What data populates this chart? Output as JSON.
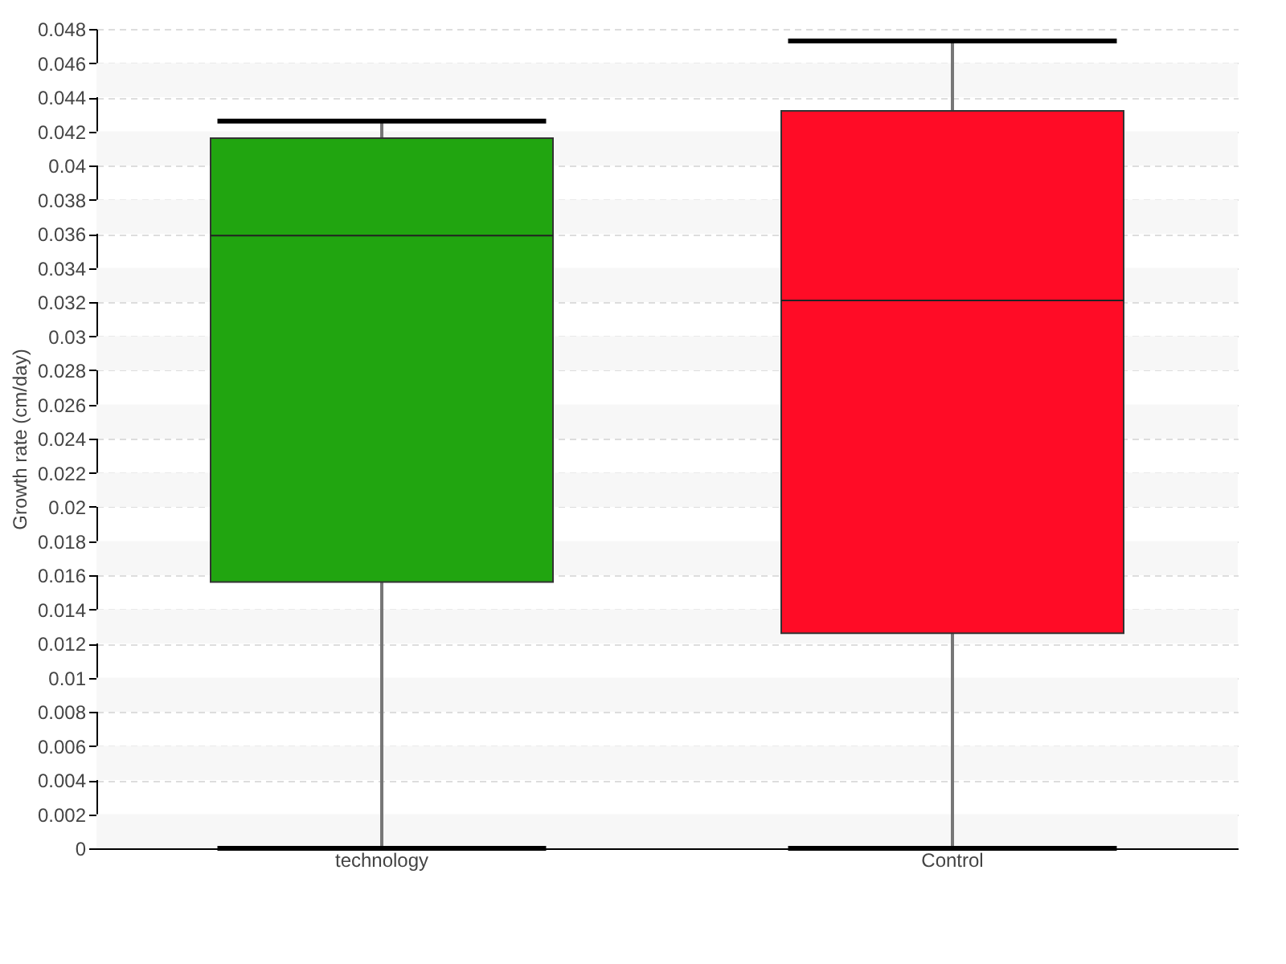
{
  "chart_data": {
    "type": "box",
    "ylabel": "Growth rate (cm/day)",
    "categories": [
      "technology",
      "Control"
    ],
    "colors": [
      "#21a510",
      "#ff0c26"
    ],
    "boxes": [
      {
        "low": 0,
        "q1": 0.0156,
        "median": 0.0359,
        "q3": 0.0416,
        "high": 0.0426
      },
      {
        "low": 0,
        "q1": 0.0126,
        "median": 0.0321,
        "q3": 0.0432,
        "high": 0.0473
      }
    ],
    "ylim": [
      0,
      0.048
    ],
    "yticks": [
      {
        "value": 0,
        "label": "0"
      },
      0.002,
      0.004,
      0.006,
      0.008,
      0.01,
      0.012,
      0.014,
      0.016,
      0.018,
      0.02,
      0.022,
      0.024,
      0.026,
      0.028,
      0.03,
      0.032,
      0.034,
      0.036,
      0.038,
      0.04,
      0.042,
      0.044,
      0.046,
      0.048
    ],
    "grid": "y"
  }
}
